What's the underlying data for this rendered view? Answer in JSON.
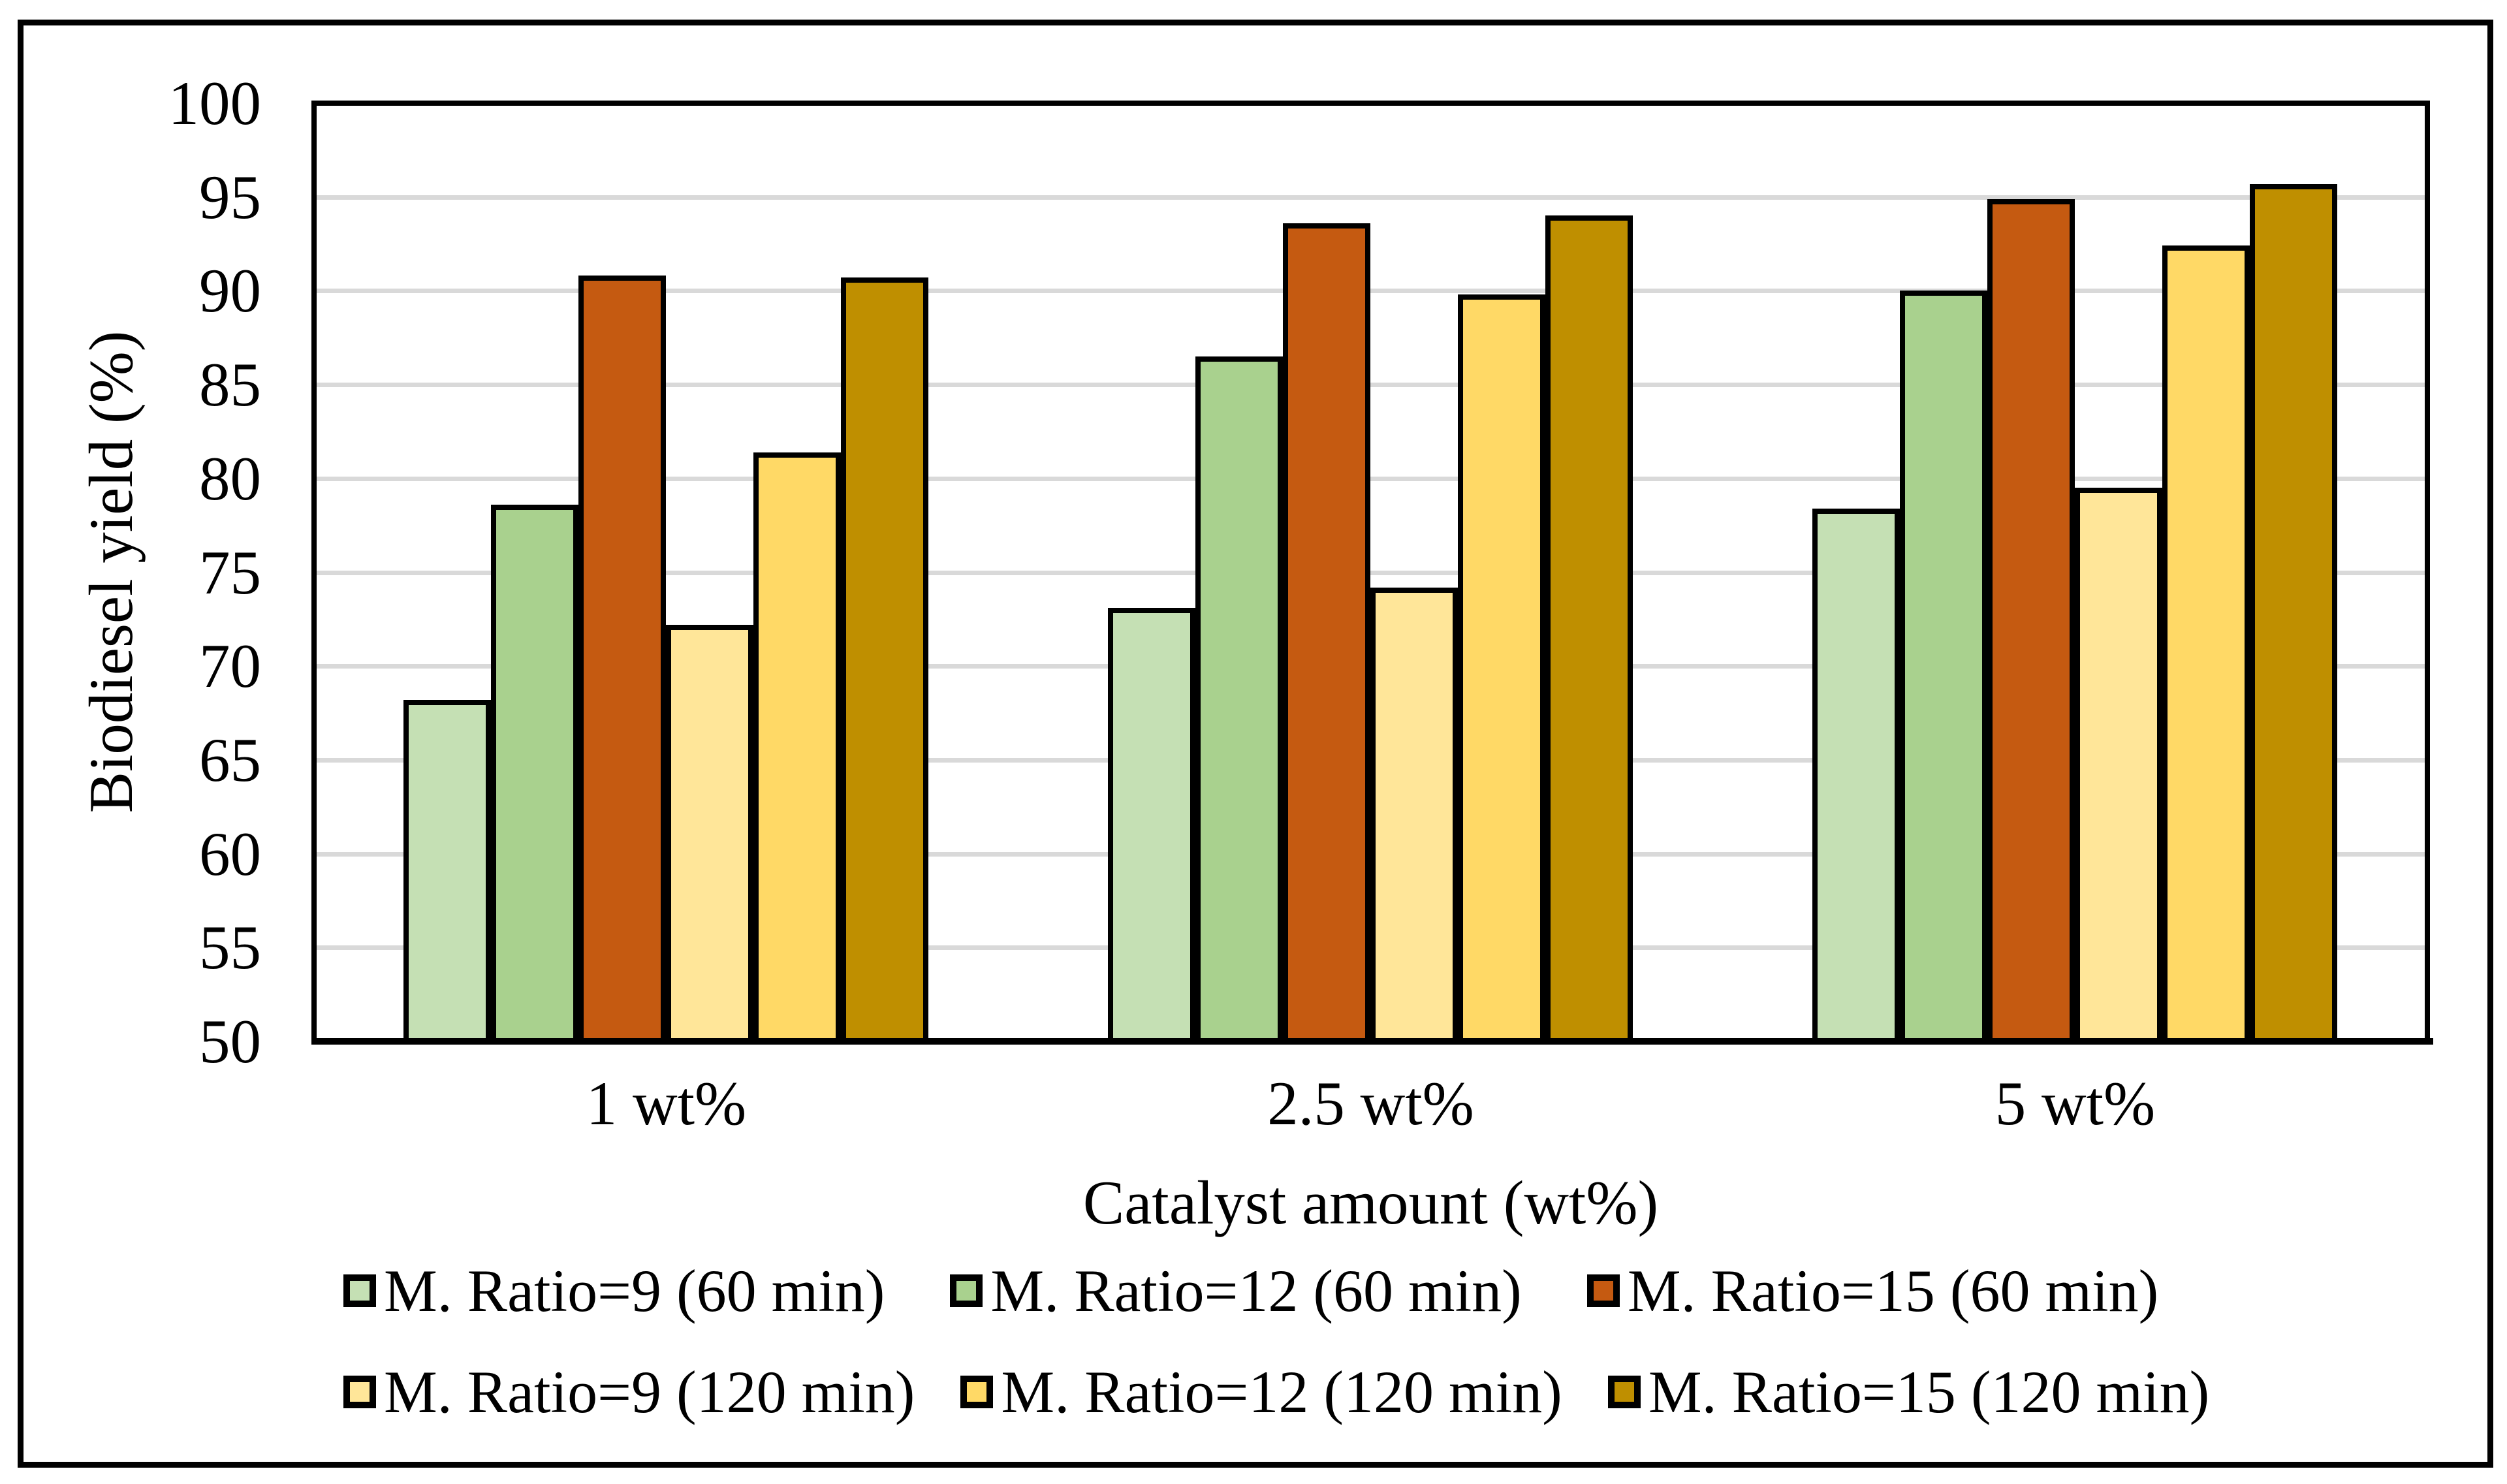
{
  "chart_data": {
    "type": "bar",
    "xlabel": "Catalyst amount (wt%)",
    "ylabel": "Biodiesel yield (%)",
    "categories": [
      "1 wt%",
      "2.5 wt%",
      "5 wt%"
    ],
    "series": [
      {
        "name": "M. Ratio=9 (60 min)",
        "color": "#C5E0B4",
        "values": [
          68.2,
          73.1,
          78.4
        ]
      },
      {
        "name": "M. Ratio=12 (60 min)",
        "color": "#A9D18E",
        "values": [
          78.6,
          86.5,
          90.0
        ]
      },
      {
        "name": "M. Ratio=15 (60 min)",
        "color": "#C55A11",
        "values": [
          90.8,
          93.6,
          94.9
        ]
      },
      {
        "name": "M. Ratio=9 (120 min)",
        "color": "#FFE699",
        "values": [
          72.2,
          74.2,
          79.5
        ]
      },
      {
        "name": "M. Ratio=12 (120 min)",
        "color": "#FFD966",
        "values": [
          81.4,
          89.8,
          92.4
        ]
      },
      {
        "name": "M. Ratio=15 (120 min)",
        "color": "#BF8F00",
        "values": [
          90.7,
          94.0,
          95.7
        ]
      }
    ],
    "ylim": [
      50,
      100
    ],
    "ytick_step": 5,
    "yticks": [
      50,
      55,
      60,
      65,
      70,
      75,
      80,
      85,
      90,
      95,
      100
    ],
    "grid_on": true,
    "grid_color": "#D9D9D9",
    "axis_color": "#000000",
    "legend_position": "bottom",
    "legend_rows": 2
  }
}
